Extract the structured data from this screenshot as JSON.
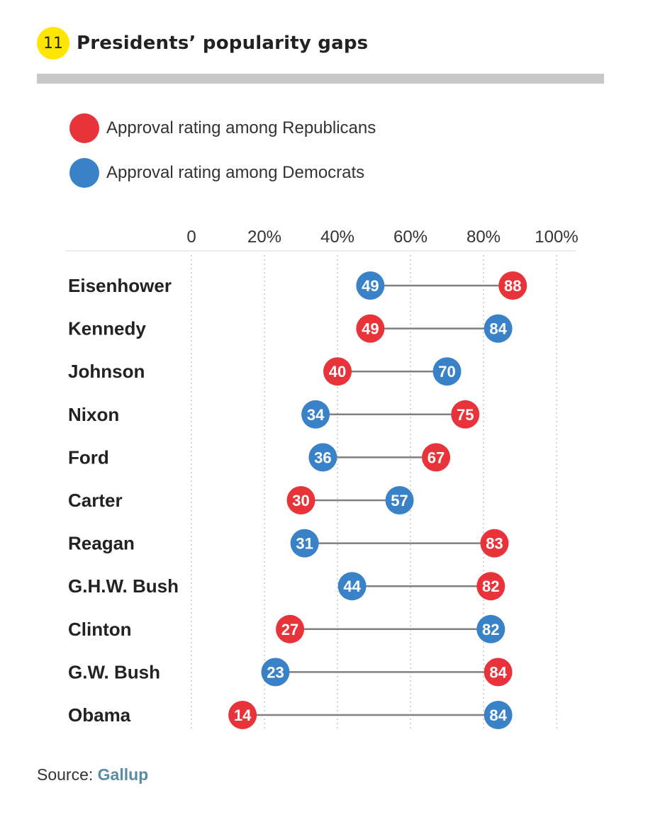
{
  "header": {
    "number": "11",
    "title": "Presidents’ popularity gaps"
  },
  "legend": [
    {
      "label": "Approval rating among Republicans",
      "color": "#e8333b"
    },
    {
      "label": "Approval rating among Democrats",
      "color": "#3a82c8"
    }
  ],
  "source": {
    "prefix": "Source:",
    "name": "Gallup"
  },
  "colors": {
    "republicans": "#e8333b",
    "democrats": "#3a82c8",
    "connector": "#808080",
    "grid": "#bdbdbd"
  },
  "chart_data": {
    "type": "dot-plot",
    "x_ticks": [
      "0",
      "20%",
      "40%",
      "60%",
      "80%",
      "100%"
    ],
    "xlim": [
      0,
      100
    ],
    "categories": [
      "Eisenhower",
      "Kennedy",
      "Johnson",
      "Nixon",
      "Ford",
      "Carter",
      "Reagan",
      "G.H.W. Bush",
      "Clinton",
      "G.W. Bush",
      "Obama"
    ],
    "series": [
      {
        "name": "Approval rating among Republicans",
        "values": [
          88,
          49,
          40,
          75,
          67,
          30,
          83,
          82,
          27,
          84,
          14
        ]
      },
      {
        "name": "Approval rating among Democrats",
        "values": [
          49,
          84,
          70,
          34,
          36,
          57,
          31,
          44,
          82,
          23,
          84
        ]
      }
    ]
  }
}
